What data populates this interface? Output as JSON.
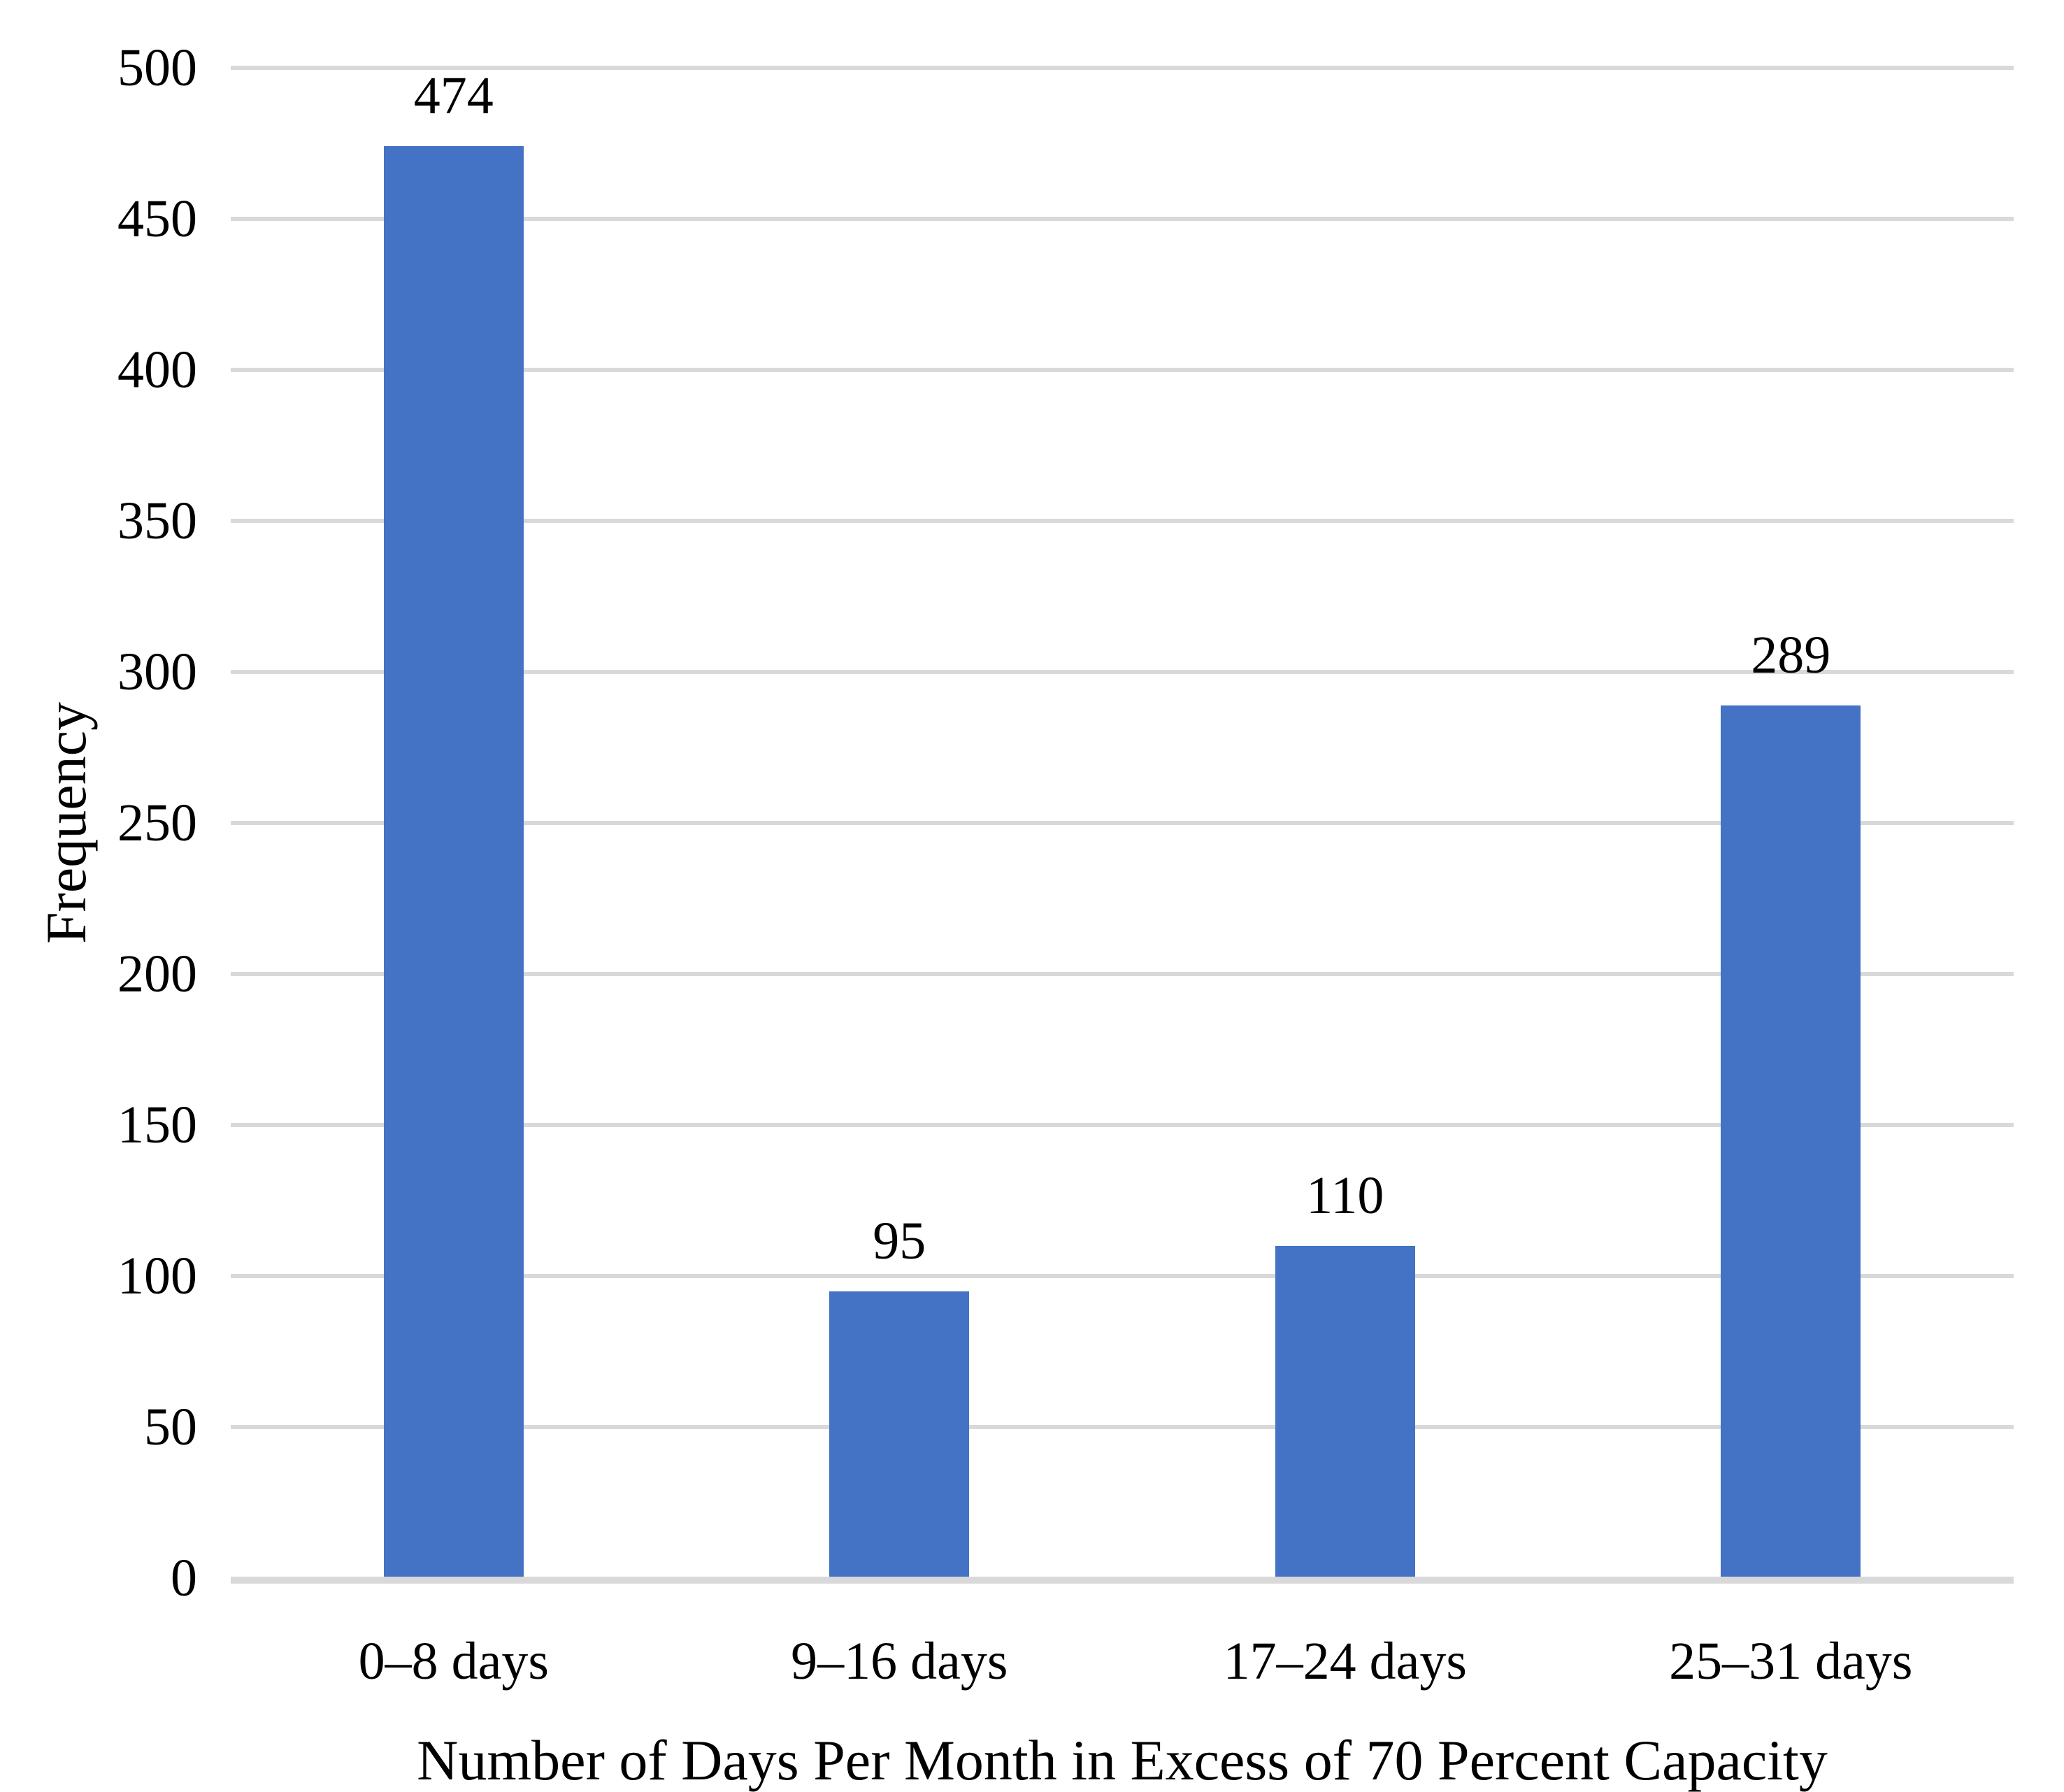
{
  "chart_data": {
    "type": "bar",
    "categories": [
      "0–8 days",
      "9–16 days",
      "17–24 days",
      "25–31 days"
    ],
    "values": [
      474,
      95,
      110,
      289
    ],
    "data_labels": [
      "474",
      "95",
      "110",
      "289"
    ],
    "title": "",
    "xlabel": "Number of Days Per Month in Excess of 70 Percent Capacity",
    "ylabel": "Frequency",
    "ylim": [
      0,
      500
    ],
    "yticks": [
      0,
      50,
      100,
      150,
      200,
      250,
      300,
      350,
      400,
      450,
      500
    ],
    "grid": "horizontal",
    "legend": "none",
    "colors": {
      "bar": "#4472C4",
      "gridline": "#D9D9D9",
      "axis_line": "#D9D9D9",
      "text": "#000000",
      "background": "#FFFFFF"
    }
  }
}
